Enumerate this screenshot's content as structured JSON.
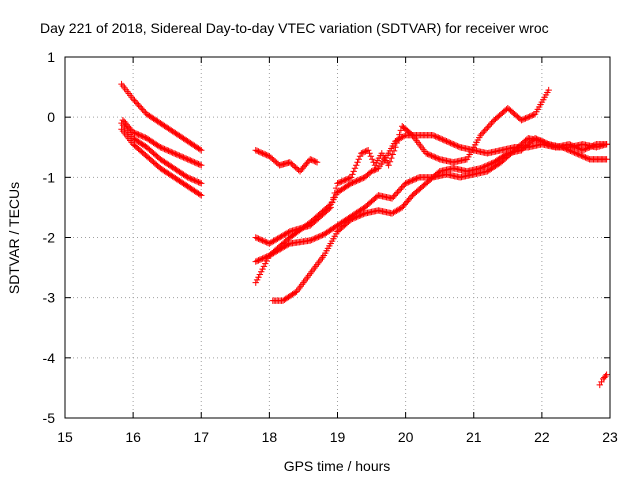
{
  "chart_data": {
    "type": "scatter",
    "title": "Day 221 of 2018, Sidereal Day-to-day VTEC variation (SDTVAR) for receiver wroc",
    "xlabel": "GPS time / hours",
    "ylabel": "SDTVAR / TECUs",
    "xlim": [
      15,
      23
    ],
    "ylim": [
      -5,
      1
    ],
    "xticks": [
      15,
      16,
      17,
      18,
      19,
      20,
      21,
      22,
      23
    ],
    "yticks": [
      1,
      0,
      -1,
      -2,
      -3,
      -4,
      -5
    ],
    "grid": true,
    "marker": "plus",
    "color": "#ff0000",
    "series": [
      {
        "name": "s1",
        "x": [
          15.83,
          16.0,
          16.2,
          16.4,
          16.6,
          16.8,
          17.0
        ],
        "y": [
          0.55,
          0.3,
          0.05,
          -0.1,
          -0.25,
          -0.4,
          -0.55
        ]
      },
      {
        "name": "s2",
        "x": [
          15.85,
          16.0,
          16.2,
          16.4,
          16.6,
          16.8,
          17.0
        ],
        "y": [
          -0.05,
          -0.25,
          -0.35,
          -0.5,
          -0.6,
          -0.7,
          -0.8
        ]
      },
      {
        "name": "s3",
        "x": [
          15.83,
          16.0,
          16.2,
          16.4,
          16.6,
          16.8,
          17.0
        ],
        "y": [
          -0.1,
          -0.35,
          -0.5,
          -0.7,
          -0.85,
          -1.0,
          -1.1
        ]
      },
      {
        "name": "s4",
        "x": [
          15.83,
          16.0,
          16.2,
          16.4,
          16.6,
          16.8,
          17.0
        ],
        "y": [
          -0.2,
          -0.45,
          -0.65,
          -0.85,
          -1.0,
          -1.15,
          -1.3
        ]
      },
      {
        "name": "s5",
        "x": [
          17.8,
          18.0,
          18.15,
          18.3,
          18.45,
          18.6,
          18.7
        ],
        "y": [
          -0.55,
          -0.65,
          -0.8,
          -0.75,
          -0.9,
          -0.7,
          -0.75
        ]
      },
      {
        "name": "s6",
        "x": [
          17.8,
          18.0,
          18.3,
          18.6,
          18.9,
          19.0,
          19.2,
          19.4,
          19.5,
          19.6,
          19.75,
          19.85,
          20.0,
          20.2,
          20.4,
          20.6,
          20.8,
          21.0,
          21.2,
          21.4,
          21.6,
          21.8,
          22.0,
          22.2,
          22.4,
          22.6,
          22.8,
          22.95
        ],
        "y": [
          -2.75,
          -2.3,
          -2.0,
          -1.75,
          -1.45,
          -1.25,
          -1.1,
          -1.0,
          -0.9,
          -0.85,
          -0.6,
          -0.4,
          -0.3,
          -0.3,
          -0.3,
          -0.4,
          -0.5,
          -0.55,
          -0.6,
          -0.55,
          -0.5,
          -0.5,
          -0.45,
          -0.5,
          -0.5,
          -0.45,
          -0.5,
          -0.45
        ]
      },
      {
        "name": "s7",
        "x": [
          17.8,
          18.0,
          18.3,
          18.6,
          18.9,
          19.0,
          19.2,
          19.35,
          19.45,
          19.55,
          19.65,
          19.75,
          19.85,
          19.95,
          20.1,
          20.3,
          20.5,
          20.7,
          20.9,
          21.1,
          21.3,
          21.5,
          21.7,
          21.9,
          22.1
        ],
        "y": [
          -2.0,
          -2.1,
          -1.9,
          -1.8,
          -1.5,
          -1.1,
          -1.0,
          -0.6,
          -0.55,
          -0.8,
          -0.6,
          -0.8,
          -0.5,
          -0.15,
          -0.3,
          -0.6,
          -0.7,
          -0.75,
          -0.7,
          -0.3,
          -0.05,
          0.15,
          -0.05,
          0.05,
          0.45
        ]
      },
      {
        "name": "s8",
        "x": [
          18.05,
          18.2,
          18.4,
          18.6,
          18.8,
          19.0,
          19.2,
          19.4,
          19.6,
          19.8,
          19.95,
          20.1,
          20.3,
          20.5,
          20.7,
          20.9,
          21.1,
          21.3,
          21.5,
          21.7,
          21.9,
          22.1,
          22.3,
          22.5,
          22.7,
          22.95
        ],
        "y": [
          -3.05,
          -3.05,
          -2.9,
          -2.6,
          -2.3,
          -1.9,
          -1.7,
          -1.6,
          -1.55,
          -1.6,
          -1.5,
          -1.3,
          -1.1,
          -0.9,
          -0.85,
          -0.9,
          -0.85,
          -0.75,
          -0.6,
          -0.55,
          -0.35,
          -0.45,
          -0.5,
          -0.6,
          -0.7,
          -0.7
        ]
      },
      {
        "name": "s9",
        "x": [
          17.8,
          18.0,
          18.3,
          18.6,
          18.8,
          19.0,
          19.2,
          19.4,
          19.6,
          19.8,
          20.0,
          20.2,
          20.4,
          20.6,
          20.8,
          21.0,
          21.2,
          21.4,
          21.6,
          21.8,
          22.0,
          22.2,
          22.4,
          22.6,
          22.8,
          22.95
        ],
        "y": [
          -2.4,
          -2.3,
          -2.1,
          -2.05,
          -1.95,
          -1.8,
          -1.65,
          -1.5,
          -1.3,
          -1.35,
          -1.1,
          -1.0,
          -1.0,
          -0.95,
          -1.0,
          -0.95,
          -0.9,
          -0.75,
          -0.55,
          -0.35,
          -0.4,
          -0.5,
          -0.45,
          -0.55,
          -0.45,
          -0.45
        ]
      },
      {
        "name": "s10",
        "x": [
          22.85,
          22.9,
          22.95
        ],
        "y": [
          -4.45,
          -4.35,
          -4.28
        ]
      }
    ]
  }
}
